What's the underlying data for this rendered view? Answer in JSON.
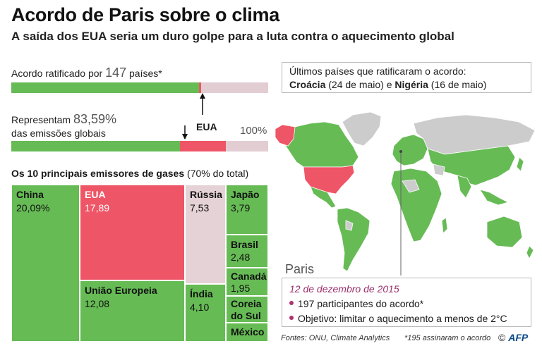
{
  "header": {
    "title": "Acordo de Paris sobre o clima",
    "subtitle": "A saída dos EUA seria um duro golpe para a luta contra o aquecimento global"
  },
  "ratification": {
    "label_prefix": "Acordo ratificado por",
    "count": "147",
    "label_suffix": "países*",
    "share_ratified_excl_usa": 0.73,
    "share_usa": 0.007
  },
  "emissions": {
    "label_prefix": "Representam",
    "value": "83,59%",
    "label_line2": "das emissões globais",
    "share_excluding_usa": 0.6569,
    "share_usa": 0.1789,
    "full_label": "100%"
  },
  "usa_marker": "EUA",
  "treemap": {
    "title_bold": "Os 10 principais emissores de gases",
    "title_rest": "(70% do total)"
  },
  "chart_data": {
    "type": "treemap",
    "title": "Os 10 principais emissores de gases (70% do total)",
    "unit": "% das emissões globais",
    "items": [
      {
        "name": "China",
        "value": "20,09%",
        "v": 20.09
      },
      {
        "name": "EUA",
        "value": "17,89",
        "v": 17.89
      },
      {
        "name": "União Europeia",
        "value": "12,08",
        "v": 12.08
      },
      {
        "name": "Rússia",
        "value": "7,53",
        "v": 7.53
      },
      {
        "name": "Índia",
        "value": "4,10",
        "v": 4.1
      },
      {
        "name": "Japão",
        "value": "3,79",
        "v": 3.79
      },
      {
        "name": "Brasil",
        "value": "2,48",
        "v": 2.48
      },
      {
        "name": "Canadá",
        "value": "1,95",
        "v": 1.95
      },
      {
        "name": "Coreia do Sul",
        "value": "",
        "v": null
      },
      {
        "name": "México",
        "value": "",
        "v": null
      }
    ]
  },
  "latest": {
    "line1": "Últimos países que ratificaram o acordo:",
    "country1": "Croácia",
    "date1": "(24 de maio) e",
    "country2": "Nigéria",
    "date2": "(16 de maio)"
  },
  "paris": {
    "label": "Paris",
    "date": "12 de dezembro de 2015",
    "bullet1": "197 participantes do acordo*",
    "bullet2": "Objetivo: limitar o aquecimento a menos de 2°C"
  },
  "footer": {
    "sources": "Fontes: ONU, Climate Analytics",
    "note": "*195 assinaram o acordo",
    "logo": "AFP"
  },
  "colors": {
    "ratified": "#66bb55",
    "usa": "#ee5566",
    "not_ratified": "#e2cdd2",
    "russia": "#e5d2d6",
    "map_other": "#cccccc",
    "paris_date": "#9b2e6b"
  }
}
